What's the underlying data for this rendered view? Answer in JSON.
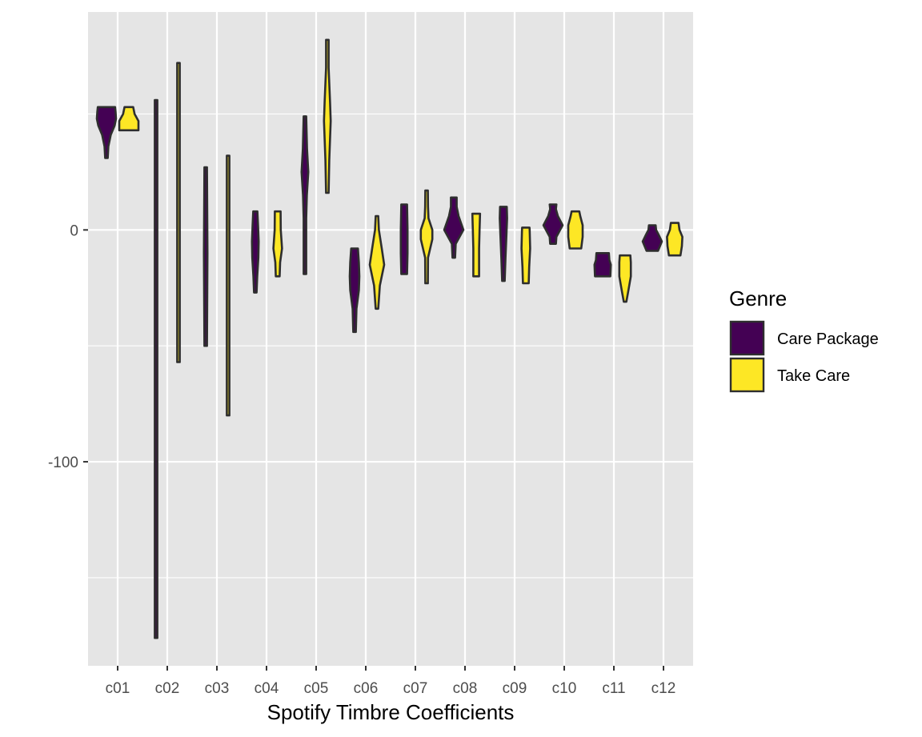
{
  "chart_data": {
    "type": "violin",
    "title": "",
    "xlabel": "Spotify Timbre Coefficients",
    "ylabel": "",
    "categories": [
      "c01",
      "c02",
      "c03",
      "c04",
      "c05",
      "c06",
      "c07",
      "c08",
      "c09",
      "c10",
      "c11",
      "c12"
    ],
    "yticks": [
      0,
      -100
    ],
    "ylim": [
      -188,
      94
    ],
    "grid": true,
    "legend": {
      "title": "Genre",
      "position": "right",
      "entries": [
        "Care Package",
        "Take Care"
      ]
    },
    "colors": {
      "Care Package": "#440154",
      "Take Care": "#FDE725",
      "panel": "#E5E5E5",
      "grid": "#FFFFFF",
      "outline": "#2E2E2E"
    },
    "series": [
      {
        "name": "Care Package",
        "violins": [
          {
            "category": "c01",
            "min": 31,
            "max": 53,
            "profile": [
              [
                31,
                0.1
              ],
              [
                36,
                0.2
              ],
              [
                41,
                0.45
              ],
              [
                45,
                0.85
              ],
              [
                48,
                1.0
              ],
              [
                51,
                0.95
              ],
              [
                53,
                0.9
              ]
            ]
          },
          {
            "category": "c02",
            "min": -176,
            "max": 56,
            "profile": [
              [
                -176,
                0.1
              ],
              [
                56,
                0.1
              ]
            ]
          },
          {
            "category": "c03",
            "min": -50,
            "max": 27,
            "profile": [
              [
                -50,
                0.12
              ],
              [
                -10,
                0.18
              ],
              [
                27,
                0.1
              ]
            ]
          },
          {
            "category": "c04",
            "min": -27,
            "max": 8,
            "profile": [
              [
                -27,
                0.1
              ],
              [
                -20,
                0.2
              ],
              [
                -12,
                0.32
              ],
              [
                -5,
                0.35
              ],
              [
                2,
                0.28
              ],
              [
                8,
                0.22
              ]
            ]
          },
          {
            "category": "c05",
            "min": -19,
            "max": 49,
            "profile": [
              [
                -19,
                0.08
              ],
              [
                5,
                0.1
              ],
              [
                15,
                0.2
              ],
              [
                25,
                0.35
              ],
              [
                35,
                0.22
              ],
              [
                49,
                0.1
              ]
            ]
          },
          {
            "category": "c06",
            "min": -44,
            "max": -8,
            "profile": [
              [
                -44,
                0.08
              ],
              [
                -34,
                0.2
              ],
              [
                -26,
                0.45
              ],
              [
                -20,
                0.5
              ],
              [
                -14,
                0.45
              ],
              [
                -8,
                0.35
              ]
            ]
          },
          {
            "category": "c07",
            "min": -19,
            "max": 11,
            "profile": [
              [
                -19,
                0.3
              ],
              [
                -10,
                0.35
              ],
              [
                0,
                0.35
              ],
              [
                11,
                0.3
              ]
            ]
          },
          {
            "category": "c08",
            "min": -12,
            "max": 14,
            "profile": [
              [
                -12,
                0.1
              ],
              [
                -6,
                0.2
              ],
              [
                0,
                1.0
              ],
              [
                6,
                0.5
              ],
              [
                10,
                0.3
              ],
              [
                14,
                0.3
              ]
            ]
          },
          {
            "category": "c09",
            "min": -22,
            "max": 10,
            "profile": [
              [
                -22,
                0.1
              ],
              [
                -12,
                0.22
              ],
              [
                -2,
                0.32
              ],
              [
                5,
                0.38
              ],
              [
                10,
                0.35
              ]
            ]
          },
          {
            "category": "c10",
            "min": -6,
            "max": 11,
            "profile": [
              [
                -6,
                0.3
              ],
              [
                -3,
                0.35
              ],
              [
                2,
                1.0
              ],
              [
                6,
                0.5
              ],
              [
                9,
                0.3
              ],
              [
                11,
                0.35
              ]
            ]
          },
          {
            "category": "c11",
            "min": -20,
            "max": -10,
            "profile": [
              [
                -20,
                0.8
              ],
              [
                -15,
                0.85
              ],
              [
                -13,
                0.7
              ],
              [
                -10,
                0.65
              ]
            ]
          },
          {
            "category": "c12",
            "min": -9,
            "max": 2,
            "profile": [
              [
                -9,
                0.6
              ],
              [
                -5,
                1.0
              ],
              [
                -2,
                0.65
              ],
              [
                0,
                0.4
              ],
              [
                2,
                0.35
              ]
            ]
          }
        ]
      },
      {
        "name": "Take Care",
        "violins": [
          {
            "category": "c01",
            "min": 43,
            "max": 53,
            "profile": [
              [
                43,
                1.0
              ],
              [
                45,
                1.0
              ],
              [
                47,
                1.0
              ],
              [
                50,
                0.6
              ],
              [
                53,
                0.45
              ]
            ]
          },
          {
            "category": "c02",
            "min": -57,
            "max": 72,
            "profile": [
              [
                -57,
                0.1
              ],
              [
                72,
                0.1
              ]
            ]
          },
          {
            "category": "c03",
            "min": -80,
            "max": 32,
            "profile": [
              [
                -80,
                0.08
              ],
              [
                32,
                0.08
              ]
            ]
          },
          {
            "category": "c04",
            "min": -20,
            "max": 8,
            "profile": [
              [
                -20,
                0.2
              ],
              [
                -14,
                0.25
              ],
              [
                -8,
                0.45
              ],
              [
                0,
                0.32
              ],
              [
                8,
                0.3
              ]
            ]
          },
          {
            "category": "c05",
            "min": 16,
            "max": 82,
            "profile": [
              [
                16,
                0.1
              ],
              [
                30,
                0.2
              ],
              [
                47,
                0.35
              ],
              [
                55,
                0.28
              ],
              [
                70,
                0.1
              ],
              [
                82,
                0.06
              ]
            ]
          },
          {
            "category": "c06",
            "min": -34,
            "max": 6,
            "profile": [
              [
                -34,
                0.1
              ],
              [
                -24,
                0.3
              ],
              [
                -15,
                0.75
              ],
              [
                -8,
                0.5
              ],
              [
                0,
                0.2
              ],
              [
                6,
                0.1
              ]
            ]
          },
          {
            "category": "c07",
            "min": -23,
            "max": 17,
            "profile": [
              [
                -23,
                0.08
              ],
              [
                -12,
                0.15
              ],
              [
                -4,
                0.6
              ],
              [
                0,
                0.6
              ],
              [
                5,
                0.2
              ],
              [
                10,
                0.15
              ],
              [
                17,
                0.1
              ]
            ]
          },
          {
            "category": "c08",
            "min": -20,
            "max": 7,
            "profile": [
              [
                -20,
                0.3
              ],
              [
                -8,
                0.3
              ],
              [
                0,
                0.35
              ],
              [
                7,
                0.4
              ]
            ]
          },
          {
            "category": "c09",
            "min": -23,
            "max": 1,
            "profile": [
              [
                -23,
                0.3
              ],
              [
                -16,
                0.35
              ],
              [
                -8,
                0.45
              ],
              [
                0,
                0.4
              ],
              [
                1,
                0.38
              ]
            ]
          },
          {
            "category": "c10",
            "min": -8,
            "max": 8,
            "profile": [
              [
                -8,
                0.6
              ],
              [
                -3,
                0.75
              ],
              [
                2,
                0.75
              ],
              [
                6,
                0.5
              ],
              [
                8,
                0.4
              ]
            ]
          },
          {
            "category": "c11",
            "min": -31,
            "max": -11,
            "profile": [
              [
                -31,
                0.1
              ],
              [
                -26,
                0.35
              ],
              [
                -20,
                0.6
              ],
              [
                -14,
                0.6
              ],
              [
                -11,
                0.55
              ]
            ]
          },
          {
            "category": "c12",
            "min": -11,
            "max": 3,
            "profile": [
              [
                -11,
                0.6
              ],
              [
                -7,
                0.75
              ],
              [
                -3,
                0.8
              ],
              [
                0,
                0.5
              ],
              [
                3,
                0.4
              ]
            ]
          }
        ]
      }
    ]
  }
}
